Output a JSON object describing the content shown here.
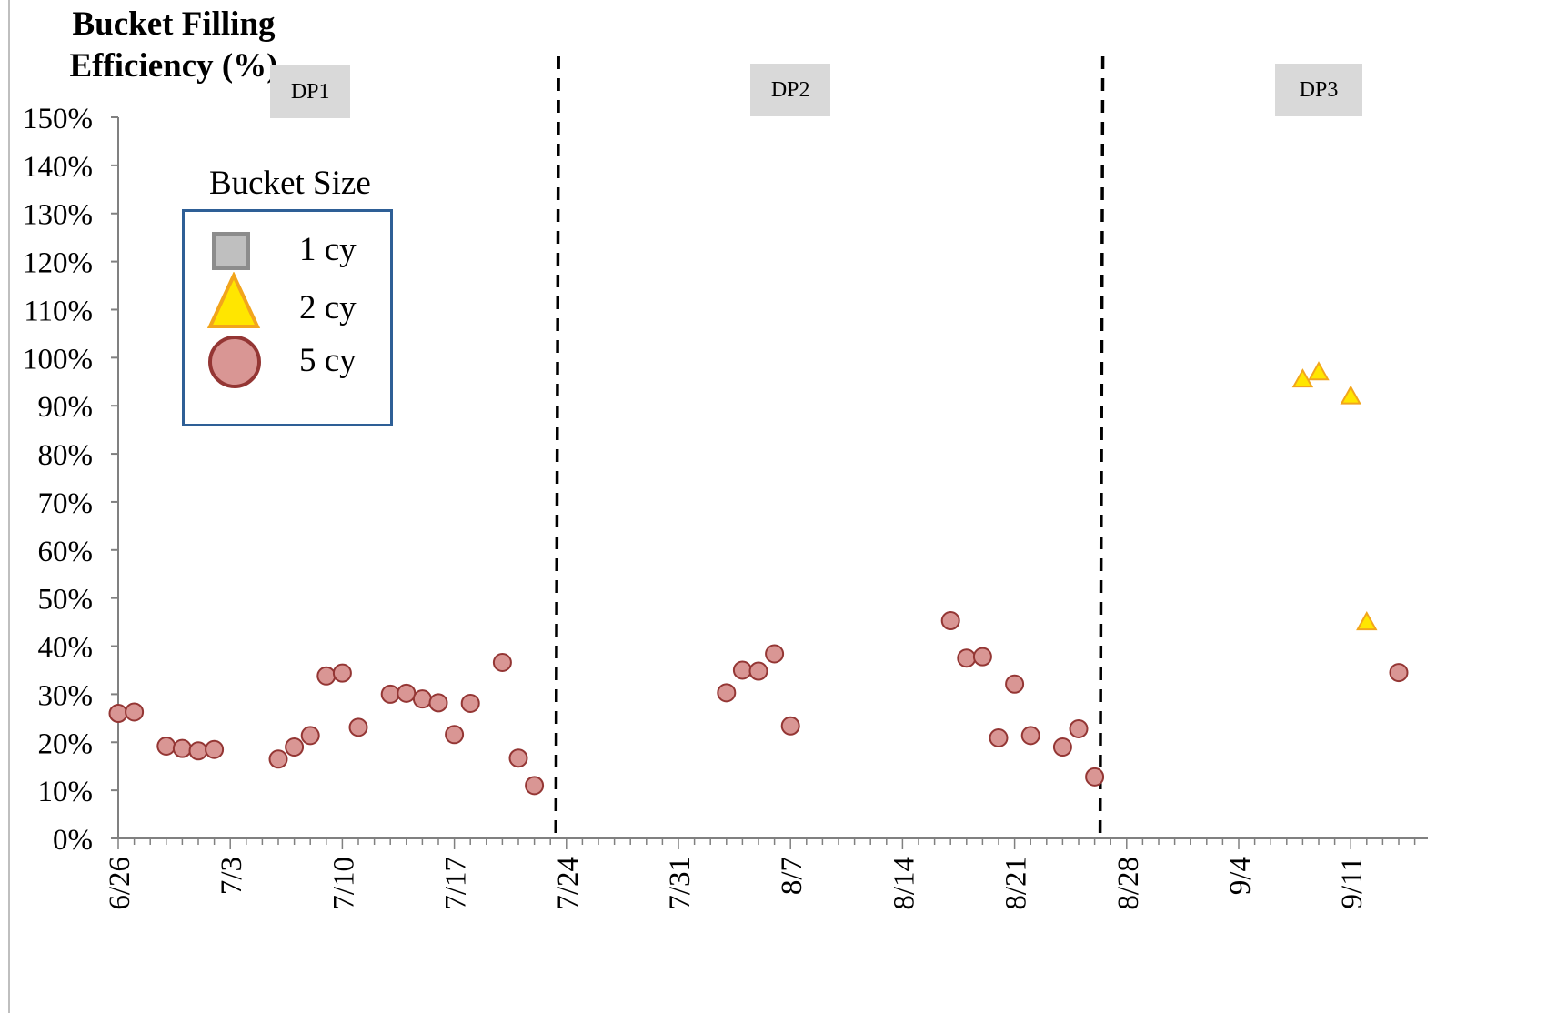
{
  "chart_data": {
    "type": "scatter",
    "ylabel_lines": [
      "Bucket Filling",
      "Efficiency (%)"
    ],
    "xlabel": "",
    "ylim": [
      0,
      150
    ],
    "y_ticks": [
      0,
      10,
      20,
      30,
      40,
      50,
      60,
      70,
      80,
      90,
      100,
      110,
      120,
      130,
      140,
      150
    ],
    "y_tick_labels": [
      "0%",
      "10%",
      "20%",
      "30%",
      "40%",
      "50%",
      "60%",
      "70%",
      "80%",
      "90%",
      "100%",
      "110%",
      "120%",
      "130%",
      "140%",
      "150%"
    ],
    "xlim": [
      "6/26",
      "9/15"
    ],
    "x_tick_labels": [
      "6/26",
      "7/3",
      "7/10",
      "7/17",
      "7/24",
      "7/31",
      "8/7",
      "8/14",
      "8/21",
      "8/28",
      "9/4",
      "9/11"
    ],
    "x_tick_dates": [
      "2000-06-26",
      "2000-07-03",
      "2000-07-10",
      "2000-07-17",
      "2000-07-24",
      "2000-07-31",
      "2000-08-07",
      "2000-08-14",
      "2000-08-21",
      "2000-08-28",
      "2000-09-04",
      "2000-09-11"
    ],
    "minor_tick_interval_days": 1,
    "grid": false,
    "phase_dividers": [
      "2000-07-23",
      "2000-08-26"
    ],
    "phases": [
      {
        "label": "DP1",
        "center_date": "2000-07-08"
      },
      {
        "label": "DP2",
        "center_date": "2000-08-07"
      },
      {
        "label": "DP3",
        "center_date": "2000-09-09"
      }
    ],
    "legend": {
      "title": "Bucket Size",
      "placement": "top-left",
      "entries": [
        {
          "label": "1 cy",
          "marker": "square",
          "fill": "#bfbfbf",
          "stroke": "#8c8c8c"
        },
        {
          "label": "2 cy",
          "marker": "triangle",
          "fill": "#ffe600",
          "stroke": "#f2a51c"
        },
        {
          "label": "5 cy",
          "marker": "circle",
          "fill": "#d99694",
          "stroke": "#943634"
        }
      ]
    },
    "series": [
      {
        "name": "1 cy",
        "marker": "square",
        "points": []
      },
      {
        "name": "2 cy",
        "marker": "triangle",
        "points": [
          {
            "x": "2000-09-08",
            "y": 95.5
          },
          {
            "x": "2000-09-09",
            "y": 97
          },
          {
            "x": "2000-09-11",
            "y": 92
          },
          {
            "x": "2000-09-12",
            "y": 45
          }
        ]
      },
      {
        "name": "5 cy",
        "marker": "circle",
        "points": [
          {
            "x": "2000-06-26",
            "y": 26
          },
          {
            "x": "2000-06-27",
            "y": 26.3
          },
          {
            "x": "2000-06-29",
            "y": 19.2
          },
          {
            "x": "2000-06-30",
            "y": 18.7
          },
          {
            "x": "2000-07-01",
            "y": 18.2
          },
          {
            "x": "2000-07-02",
            "y": 18.5
          },
          {
            "x": "2000-07-06",
            "y": 16.5
          },
          {
            "x": "2000-07-07",
            "y": 19
          },
          {
            "x": "2000-07-08",
            "y": 21.4
          },
          {
            "x": "2000-07-09",
            "y": 33.8
          },
          {
            "x": "2000-07-10",
            "y": 34.4
          },
          {
            "x": "2000-07-11",
            "y": 23.1
          },
          {
            "x": "2000-07-13",
            "y": 30
          },
          {
            "x": "2000-07-14",
            "y": 30.2
          },
          {
            "x": "2000-07-15",
            "y": 29
          },
          {
            "x": "2000-07-16",
            "y": 28.2
          },
          {
            "x": "2000-07-17",
            "y": 21.6
          },
          {
            "x": "2000-07-18",
            "y": 28.1
          },
          {
            "x": "2000-07-20",
            "y": 36.6
          },
          {
            "x": "2000-07-21",
            "y": 16.7
          },
          {
            "x": "2000-07-22",
            "y": 11
          },
          {
            "x": "2000-08-03",
            "y": 30.3
          },
          {
            "x": "2000-08-04",
            "y": 35
          },
          {
            "x": "2000-08-05",
            "y": 34.8
          },
          {
            "x": "2000-08-06",
            "y": 38.4
          },
          {
            "x": "2000-08-07",
            "y": 23.4
          },
          {
            "x": "2000-08-17",
            "y": 45.3
          },
          {
            "x": "2000-08-18",
            "y": 37.5
          },
          {
            "x": "2000-08-19",
            "y": 37.8
          },
          {
            "x": "2000-08-20",
            "y": 20.9
          },
          {
            "x": "2000-08-21",
            "y": 32.1
          },
          {
            "x": "2000-08-22",
            "y": 21.4
          },
          {
            "x": "2000-08-24",
            "y": 19
          },
          {
            "x": "2000-08-25",
            "y": 22.8
          },
          {
            "x": "2000-08-26",
            "y": 12.8
          },
          {
            "x": "2000-09-14",
            "y": 34.5
          }
        ]
      }
    ]
  }
}
